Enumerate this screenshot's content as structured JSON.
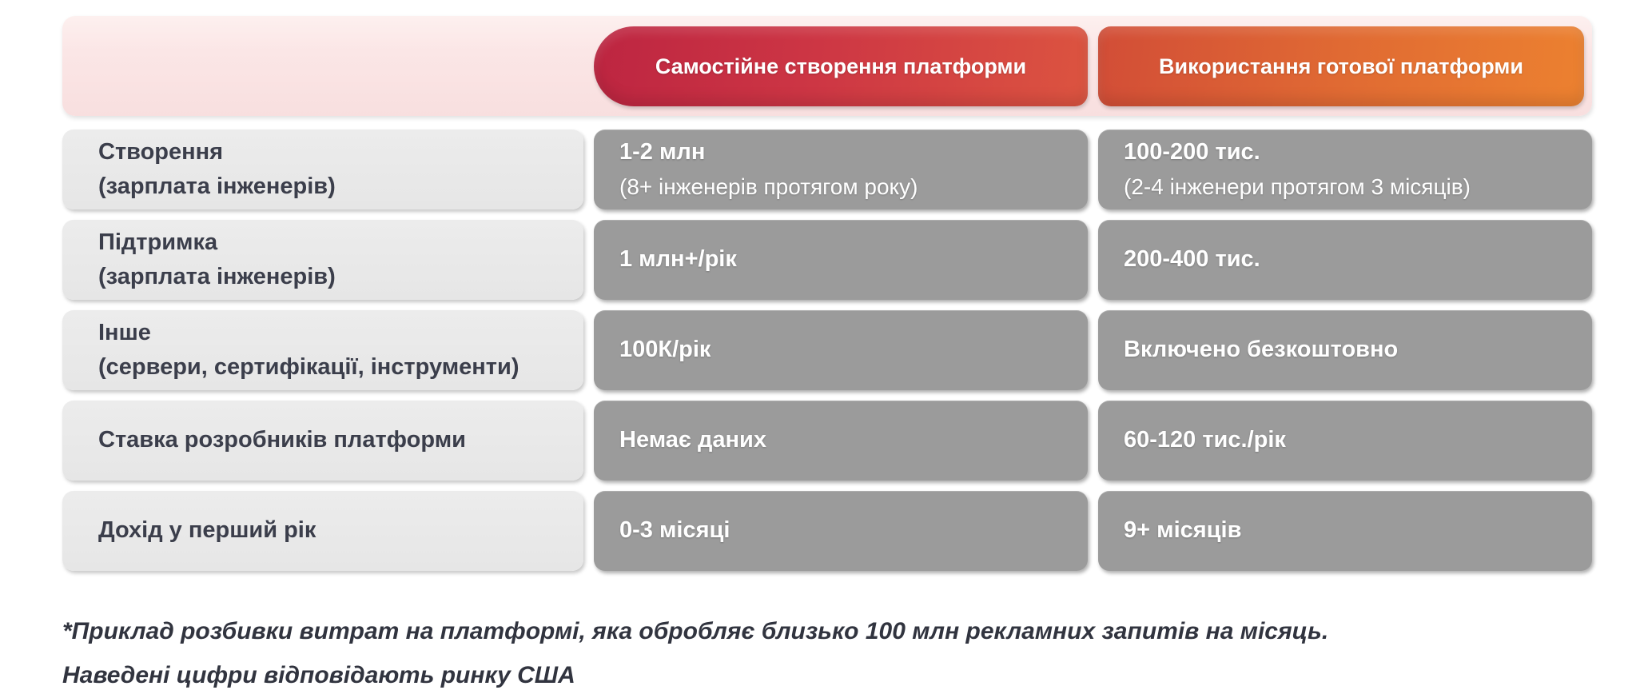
{
  "chart_data": {
    "type": "table",
    "columns": [
      {
        "id": "self_built",
        "label": "Самостійне створення платформи"
      },
      {
        "id": "ready_made",
        "label": "Використання готової платформи"
      }
    ],
    "rows": [
      {
        "header": {
          "line1": "Створення",
          "line2": "(зарплата інженерів)"
        },
        "self_built": {
          "main": "1-2 млн",
          "note": "(8+ інженерів протягом року)"
        },
        "ready_made": {
          "main": "100-200 тис.",
          "note": "(2-4 інженери протягом 3 місяців)"
        }
      },
      {
        "header": {
          "line1": "Підтримка",
          "line2": "(зарплата інженерів)"
        },
        "self_built": {
          "main": "1 млн+/рік",
          "note": ""
        },
        "ready_made": {
          "main": "200-400 тис.",
          "note": ""
        }
      },
      {
        "header": {
          "line1": "Інше",
          "line2": "(сервери, сертифікації, інструменти)"
        },
        "self_built": {
          "main": "100К/рік",
          "note": ""
        },
        "ready_made": {
          "main": "Включено безкоштовно",
          "note": ""
        }
      },
      {
        "header": {
          "line1": "Ставка розробників платформи",
          "line2": ""
        },
        "self_built": {
          "main": "Немає даних",
          "note": ""
        },
        "ready_made": {
          "main": "60-120 тис./рік",
          "note": ""
        }
      },
      {
        "header": {
          "line1": "Дохід у перший рік",
          "line2": ""
        },
        "self_built": {
          "main": "0-3 місяці",
          "note": ""
        },
        "ready_made": {
          "main": "9+ місяців",
          "note": ""
        }
      }
    ],
    "footnote_line1": "*Приклад розбивки витрат на платформі, яка обробляє близько 100 млн рекламних запитів на місяць.",
    "footnote_line2": "Наведені цифри відповідають ринку США"
  },
  "colors": {
    "header_strip_bg": "#fbe6e6",
    "self_built_gradient_start": "#bd2541",
    "self_built_gradient_end": "#dc5440",
    "ready_made_gradient_start": "#d24d37",
    "ready_made_gradient_end": "#ec8130",
    "label_cell_bg": "#e8e8e8",
    "data_cell_bg": "#9b9b9b",
    "label_text": "#3b3e4b",
    "data_text": "#ffffff",
    "footnote_text": "#31343f"
  }
}
